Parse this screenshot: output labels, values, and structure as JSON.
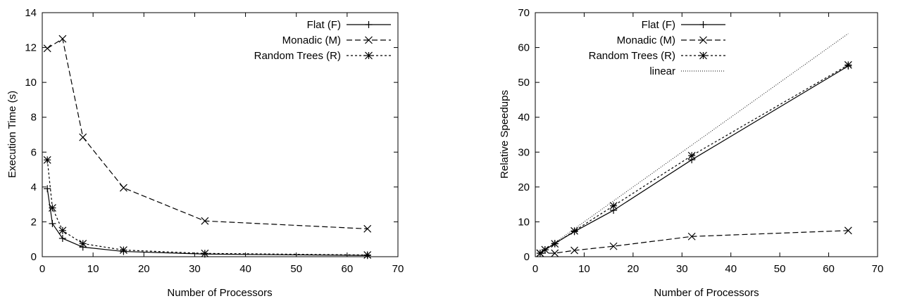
{
  "chart_data": [
    {
      "type": "line",
      "title": "",
      "xlabel": "Number of Processors",
      "ylabel": "Execution Time (s)",
      "xlim": [
        0,
        70
      ],
      "ylim": [
        0,
        14
      ],
      "xticks": [
        "0",
        "10",
        "20",
        "30",
        "40",
        "50",
        "60",
        "70"
      ],
      "yticks": [
        "0",
        "2",
        "4",
        "6",
        "8",
        "10",
        "12",
        "14"
      ],
      "grid": false,
      "legend_position": "top-right",
      "series": [
        {
          "name": "Flat (F)",
          "style": "solid",
          "marker": "plus",
          "x": [
            1,
            2,
            4,
            8,
            16,
            32,
            64
          ],
          "y": [
            3.9,
            1.9,
            1.05,
            0.55,
            0.3,
            0.15,
            0.07
          ]
        },
        {
          "name": "Monadic (M)",
          "style": "dashed",
          "marker": "x",
          "x": [
            1,
            4,
            8,
            16,
            32,
            64
          ],
          "y": [
            11.95,
            12.5,
            6.85,
            3.95,
            2.05,
            1.6
          ]
        },
        {
          "name": "Random Trees (R)",
          "style": "dotted",
          "marker": "star",
          "x": [
            1,
            2,
            4,
            8,
            16,
            32,
            64
          ],
          "y": [
            5.55,
            2.8,
            1.5,
            0.75,
            0.38,
            0.19,
            0.1
          ]
        }
      ]
    },
    {
      "type": "line",
      "title": "",
      "xlabel": "Number of Processors",
      "ylabel": "Relative Speedups",
      "xlim": [
        0,
        70
      ],
      "ylim": [
        0,
        70
      ],
      "xticks": [
        "0",
        "10",
        "20",
        "30",
        "40",
        "50",
        "60",
        "70"
      ],
      "yticks": [
        "0",
        "10",
        "20",
        "30",
        "40",
        "50",
        "60",
        "70"
      ],
      "grid": false,
      "legend_position": "top-left",
      "series": [
        {
          "name": "Flat (F)",
          "style": "solid",
          "marker": "plus",
          "x": [
            1,
            2,
            4,
            8,
            16,
            32,
            64
          ],
          "y": [
            1,
            2,
            3.8,
            7.2,
            13.3,
            27.8,
            54.7
          ]
        },
        {
          "name": "Monadic (M)",
          "style": "dashed",
          "marker": "x",
          "x": [
            1,
            4,
            8,
            16,
            32,
            64
          ],
          "y": [
            1,
            1.0,
            1.8,
            3.0,
            5.8,
            7.5
          ]
        },
        {
          "name": "Random Trees (R)",
          "style": "dotted",
          "marker": "star",
          "x": [
            1,
            2,
            4,
            8,
            16,
            32,
            64
          ],
          "y": [
            1,
            2,
            3.7,
            7.4,
            14.6,
            29.0,
            55.0
          ]
        },
        {
          "name": "linear",
          "style": "fine-dotted",
          "marker": "none",
          "x": [
            1,
            64
          ],
          "y": [
            1,
            64
          ]
        }
      ]
    }
  ]
}
